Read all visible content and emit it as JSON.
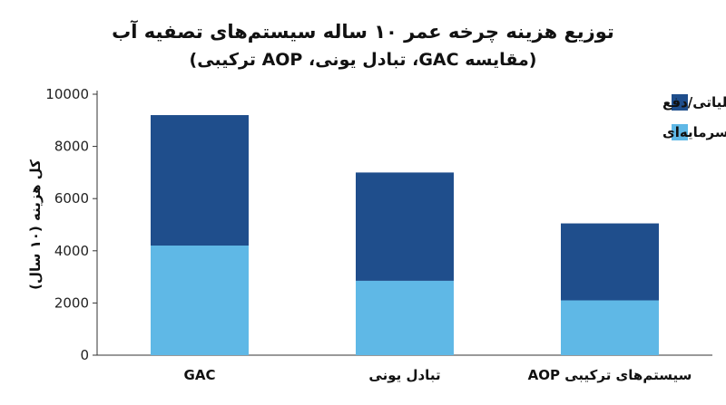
{
  "chart_data": {
    "type": "bar",
    "stacked": true,
    "title": "توزیع هزینه چرخه عمر ۱۰ ساله سیستم‌های تصفیه آب",
    "subtitle": "(مقایسه GAC، تبادل یونی، AOP ترکیبی)",
    "ylabel": "کل هزینه (۱۰ سال)",
    "xlabel": "",
    "ylim": [
      0,
      10000
    ],
    "yticks": [
      0,
      2000,
      4000,
      6000,
      8000,
      10000
    ],
    "categories": [
      "GAC",
      "تبادل یونی",
      "سیستم‌های ترکیبی AOP"
    ],
    "series": [
      {
        "name": "هزینه سرمایه‌ای",
        "values": [
          4200,
          2850,
          2100
        ],
        "color": "#5fb8e6"
      },
      {
        "name": "هزینه عملیاتی/دفع",
        "values": [
          5000,
          4150,
          2950
        ],
        "color": "#1f4e8c"
      }
    ],
    "legend": {
      "position": "top-right",
      "order": [
        "هزینه عملیاتی/دفع",
        "هزینه سرمایه‌ای"
      ]
    },
    "grid": false
  }
}
